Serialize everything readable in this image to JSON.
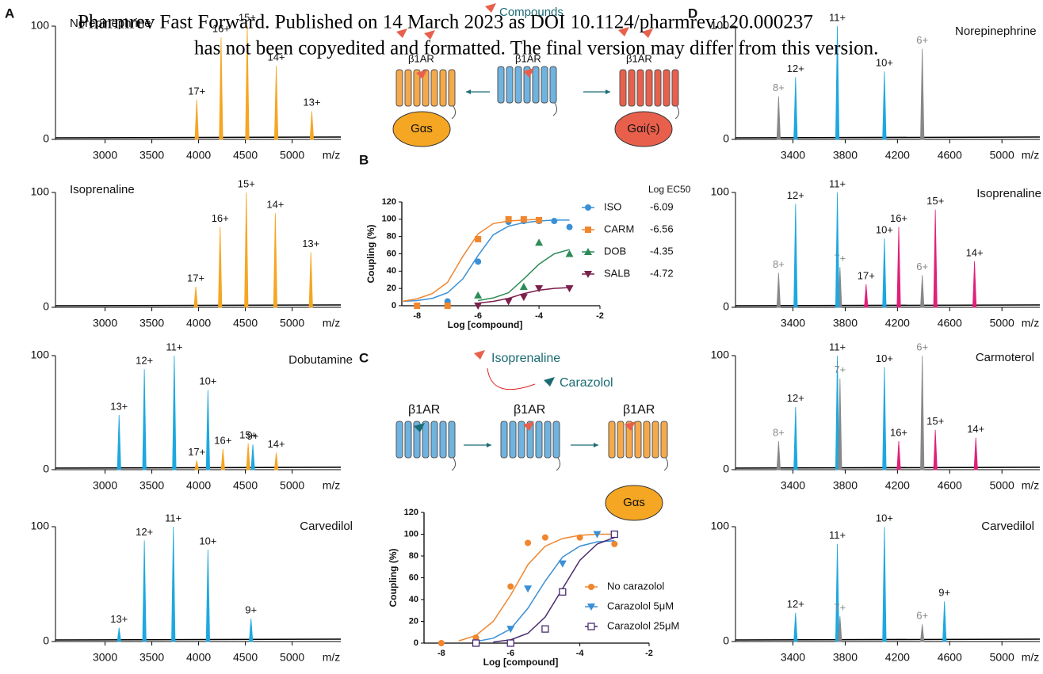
{
  "watermark": [
    "Pharmrev Fast Forward. Published on 14 March 2023 as DOI 10.1124/pharmrev.120.000237",
    "has not been copyedited and formatted. The final version may differ from this version."
  ],
  "panel_labels": [
    "A",
    "B",
    "C",
    "D"
  ],
  "schematic_top": {
    "label": "Compounds",
    "receptor": "β1AR",
    "g_left": "Gαs",
    "g_right": "Gαi(s)"
  },
  "schematic_c": {
    "ligand_1": "Isoprenaline",
    "ligand_2": "Carazolol",
    "receptor": "β1AR",
    "g": "Gαs"
  },
  "chart_data": [
    {
      "type": "spectrum",
      "title": "Norepinephrine",
      "x_label": "m/z",
      "xlim": [
        2470,
        5520
      ],
      "xticks": [
        3000,
        3500,
        4000,
        4500,
        5000
      ],
      "ylim": [
        0,
        100
      ],
      "yticks": [
        0,
        100
      ],
      "peaks": {
        "x": [
          3980,
          4240,
          4520,
          4830,
          5210
        ],
        "values": [
          35,
          90,
          100,
          65,
          25
        ],
        "labels": [
          "17+",
          "16+",
          "15+",
          "14+",
          "13+"
        ],
        "colors": [
          "#f5a623",
          "#f5a623",
          "#f5a623",
          "#f5a623",
          "#f5a623"
        ]
      }
    },
    {
      "type": "spectrum",
      "title": "Isoprenaline",
      "x_label": "m/z",
      "xlim": [
        2470,
        5520
      ],
      "xticks": [
        3000,
        3500,
        4000,
        4500,
        5000
      ],
      "ylim": [
        0,
        100
      ],
      "yticks": [
        0,
        100
      ],
      "peaks": {
        "x": [
          3970,
          4230,
          4510,
          4820,
          5200
        ],
        "values": [
          18,
          70,
          100,
          82,
          48
        ],
        "labels": [
          "17+",
          "16+",
          "15+",
          "14+",
          "13+"
        ],
        "colors": [
          "#f5a623",
          "#f5a623",
          "#f5a623",
          "#f5a623",
          "#f5a623"
        ]
      }
    },
    {
      "type": "spectrum",
      "title": "Dobutamine",
      "x_label": "m/z",
      "xlim": [
        2470,
        5520
      ],
      "xticks": [
        3000,
        3500,
        4000,
        4500,
        5000
      ],
      "ylim": [
        0,
        100
      ],
      "yticks": [
        0,
        100
      ],
      "peaks": {
        "x": [
          3150,
          3420,
          3740,
          4100,
          3980,
          4260,
          4530,
          4580,
          4830
        ],
        "values": [
          48,
          88,
          100,
          70,
          8,
          18,
          23,
          22,
          15
        ],
        "labels": [
          "13+",
          "12+",
          "11+",
          "10+",
          "17+",
          "16+",
          "15+",
          "9+",
          "14+"
        ],
        "colors": [
          "#1ea8e0",
          "#1ea8e0",
          "#1ea8e0",
          "#1ea8e0",
          "#f5a623",
          "#f5a623",
          "#f5a623",
          "#1ea8e0",
          "#f5a623"
        ]
      }
    },
    {
      "type": "spectrum",
      "title": "Carvedilol",
      "x_label": "m/z",
      "xlim": [
        2470,
        5520
      ],
      "xticks": [
        3000,
        3500,
        4000,
        4500,
        5000
      ],
      "ylim": [
        0,
        100
      ],
      "yticks": [
        0,
        100
      ],
      "peaks": {
        "x": [
          3150,
          3420,
          3730,
          4100,
          4560
        ],
        "values": [
          12,
          88,
          100,
          80,
          20
        ],
        "labels": [
          "13+",
          "12+",
          "11+",
          "10+",
          "9+"
        ],
        "colors": [
          "#1ea8e0",
          "#1ea8e0",
          "#1ea8e0",
          "#1ea8e0",
          "#1ea8e0"
        ]
      }
    },
    {
      "type": "dose_response",
      "x_label": "Log [compound]",
      "y_label": "Coupling (%)",
      "xlim": [
        -8.5,
        -2
      ],
      "xticks": [
        -8,
        -6,
        -4,
        -2
      ],
      "ylim": [
        0,
        120
      ],
      "yticks": [
        0,
        20,
        40,
        60,
        80,
        100,
        120
      ],
      "legend_title": "Log EC50",
      "series": [
        {
          "name": "ISO",
          "color": "#3a8fd6",
          "marker": "circle",
          "log_ec50": -6.09,
          "x": [
            -8,
            -7,
            -6,
            -5,
            -4.5,
            -4,
            -3.5,
            -3
          ],
          "values": [
            0,
            5,
            51,
            97,
            98,
            98,
            98,
            91
          ],
          "fit_x": [
            -8.5,
            -8,
            -7.5,
            -7,
            -6.5,
            -6,
            -5.5,
            -5,
            -4.5,
            -4,
            -3.5,
            -3
          ],
          "fit_values": [
            5,
            6,
            8.5,
            15,
            31,
            58,
            82,
            92,
            96,
            98,
            99,
            99
          ]
        },
        {
          "name": "CARM",
          "color": "#f0862e",
          "marker": "square",
          "log_ec50": -6.56,
          "x": [
            -8,
            -7,
            -6,
            -5,
            -4.5,
            -4
          ],
          "values": [
            0,
            0,
            77,
            100,
            100,
            99
          ],
          "fit_x": [
            -8.5,
            -8,
            -7.5,
            -7,
            -6.5,
            -6,
            -5.5,
            -5,
            -4.5,
            -4
          ],
          "fit_values": [
            5,
            8,
            14,
            27,
            57,
            83,
            95,
            98,
            99,
            100
          ]
        },
        {
          "name": "DOB",
          "color": "#2e8b57",
          "marker": "triangle",
          "log_ec50": -4.35,
          "x": [
            -6,
            -4.5,
            -4,
            -3
          ],
          "values": [
            12,
            22,
            73,
            60
          ],
          "fit_x": [
            -6,
            -5.5,
            -5,
            -4.5,
            -4,
            -3.5,
            -3
          ],
          "fit_values": [
            6,
            9,
            15,
            31,
            48,
            60,
            65
          ]
        },
        {
          "name": "SALB",
          "color": "#7b1f4b",
          "marker": "triangle-down",
          "log_ec50": -4.72,
          "x": [
            -6,
            -5,
            -4.5,
            -4,
            -3
          ],
          "values": [
            0,
            5,
            10,
            20,
            20
          ],
          "fit_x": [
            -6,
            -5.5,
            -5,
            -4.5,
            -4,
            -3.5,
            -3
          ],
          "fit_values": [
            3,
            5,
            8.5,
            14,
            18,
            20,
            21
          ]
        }
      ]
    },
    {
      "type": "dose_response",
      "x_label": "Log [compound]",
      "y_label": "Coupling (%)",
      "xlim": [
        -8.5,
        -2
      ],
      "xticks": [
        -8,
        -6,
        -4,
        -2
      ],
      "ylim": [
        0,
        120
      ],
      "yticks": [
        0,
        20,
        40,
        60,
        80,
        100,
        120
      ],
      "series": [
        {
          "name": "No carazolol",
          "color": "#f0862e",
          "marker": "circle",
          "x": [
            -8,
            -7,
            -6,
            -5.5,
            -5,
            -4,
            -3
          ],
          "values": [
            0,
            5,
            52,
            92,
            97,
            97,
            91
          ],
          "fit_x": [
            -7.5,
            -7,
            -6.5,
            -6,
            -5.5,
            -5,
            -4.5,
            -4,
            -3.5,
            -3
          ],
          "fit_values": [
            2,
            7,
            20,
            44,
            72,
            89,
            96,
            99,
            100,
            100
          ]
        },
        {
          "name": "Carazolol 5μM",
          "color": "#3a8fd6",
          "marker": "triangle-down",
          "x": [
            -7,
            -6,
            -5.5,
            -4.5,
            -3.5,
            -3
          ],
          "values": [
            0,
            13,
            50,
            73,
            100,
            100
          ],
          "fit_x": [
            -7,
            -6.5,
            -6,
            -5.5,
            -5,
            -4.5,
            -4,
            -3.5,
            -3
          ],
          "fit_values": [
            1.5,
            4.5,
            13,
            32,
            57,
            79,
            89,
            93,
            94
          ]
        },
        {
          "name": "Carazolol 25μM",
          "color": "#4b2c6f",
          "marker": "open-square",
          "x": [
            -7,
            -6,
            -5,
            -4.5,
            -3
          ],
          "values": [
            0,
            0,
            13,
            47,
            100
          ],
          "fit_x": [
            -6.5,
            -6,
            -5.5,
            -5,
            -4.5,
            -4,
            -3.5,
            -3
          ],
          "fit_values": [
            1,
            3,
            9,
            24,
            50,
            76,
            91,
            97
          ]
        }
      ]
    },
    {
      "type": "spectrum",
      "title": "Norepinephrine",
      "x_label": "m/z",
      "xlim": [
        2960,
        5290
      ],
      "xticks": [
        3400,
        3800,
        4200,
        4600,
        5000
      ],
      "ylim": [
        0,
        100
      ],
      "yticks": [
        0,
        100
      ],
      "peaks": {
        "x": [
          3290,
          3420,
          3740,
          4100,
          4390
        ],
        "values": [
          38,
          55,
          100,
          60,
          80
        ],
        "labels": [
          "8+",
          "12+",
          "11+",
          "10+",
          "6+"
        ],
        "colors": [
          "#888888",
          "#1ea8e0",
          "#1ea8e0",
          "#1ea8e0",
          "#888888"
        ]
      }
    },
    {
      "type": "spectrum",
      "title": "Isoprenaline",
      "x_label": "m/z",
      "xlim": [
        2960,
        5290
      ],
      "xticks": [
        3400,
        3800,
        4200,
        4600,
        5000
      ],
      "ylim": [
        0,
        100
      ],
      "yticks": [
        0,
        100
      ],
      "peaks": {
        "x": [
          3290,
          3420,
          3760,
          3740,
          3960,
          4100,
          4210,
          4390,
          4490,
          4790
        ],
        "values": [
          30,
          90,
          35,
          100,
          20,
          60,
          70,
          28,
          85,
          40
        ],
        "labels": [
          "8+",
          "12+",
          "7+",
          "11+",
          "17+",
          "10+",
          "16+",
          "6+",
          "15+",
          "14+"
        ],
        "colors": [
          "#888888",
          "#1ea8e0",
          "#888888",
          "#1ea8e0",
          "#e0207a",
          "#1ea8e0",
          "#e0207a",
          "#888888",
          "#e0207a",
          "#e0207a"
        ]
      }
    },
    {
      "type": "spectrum",
      "title": "Carmoterol",
      "x_label": "m/z",
      "xlim": [
        2960,
        5290
      ],
      "xticks": [
        3400,
        3800,
        4200,
        4600,
        5000
      ],
      "ylim": [
        0,
        100
      ],
      "yticks": [
        0,
        100
      ],
      "peaks": {
        "x": [
          3290,
          3420,
          3740,
          3760,
          4100,
          4210,
          4390,
          4490,
          4800
        ],
        "values": [
          25,
          55,
          100,
          80,
          90,
          25,
          100,
          35,
          28
        ],
        "labels": [
          "8+",
          "12+",
          "11+",
          "7+",
          "10+",
          "16+",
          "6+",
          "15+",
          "14+"
        ],
        "colors": [
          "#888888",
          "#1ea8e0",
          "#1ea8e0",
          "#888888",
          "#1ea8e0",
          "#e0207a",
          "#888888",
          "#e0207a",
          "#e0207a"
        ]
      }
    },
    {
      "type": "spectrum",
      "title": "Carvedilol",
      "x_label": "m/z",
      "xlim": [
        2960,
        5290
      ],
      "xticks": [
        3400,
        3800,
        4200,
        4600,
        5000
      ],
      "ylim": [
        0,
        100
      ],
      "yticks": [
        0,
        100
      ],
      "peaks": {
        "x": [
          3420,
          3740,
          3760,
          4100,
          4390,
          4560
        ],
        "values": [
          25,
          85,
          22,
          100,
          15,
          35
        ],
        "labels": [
          "12+",
          "11+",
          "7+",
          "10+",
          "6+",
          "9+"
        ],
        "colors": [
          "#1ea8e0",
          "#1ea8e0",
          "#888888",
          "#1ea8e0",
          "#888888",
          "#1ea8e0"
        ]
      }
    }
  ]
}
